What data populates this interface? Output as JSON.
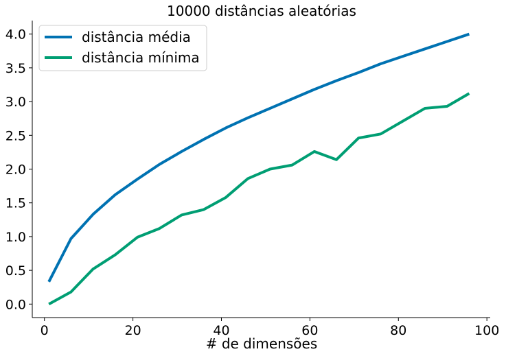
{
  "chart_data": {
    "type": "line",
    "title": "10000 distâncias aleatórias",
    "xlabel": "# de dimensões",
    "ylabel": "",
    "xlim": [
      -2.75,
      100.75
    ],
    "ylim": [
      -0.2,
      4.2
    ],
    "xticks": [
      0,
      20,
      40,
      60,
      80,
      100
    ],
    "yticks": [
      0.0,
      0.5,
      1.0,
      1.5,
      2.0,
      2.5,
      3.0,
      3.5,
      4.0
    ],
    "grid": false,
    "legend_position": "top-left",
    "x": [
      1,
      6,
      11,
      16,
      21,
      26,
      31,
      36,
      41,
      46,
      51,
      56,
      61,
      66,
      71,
      76,
      81,
      86,
      91,
      96
    ],
    "series": [
      {
        "name": "distância média",
        "color": "#0072b2",
        "values": [
          0.33,
          0.97,
          1.33,
          1.62,
          1.85,
          2.07,
          2.26,
          2.44,
          2.61,
          2.76,
          2.9,
          3.04,
          3.18,
          3.31,
          3.43,
          3.56,
          3.67,
          3.78,
          3.89,
          4.0
        ]
      },
      {
        "name": "distância mínima",
        "color": "#009e73",
        "values": [
          0.0,
          0.18,
          0.52,
          0.73,
          0.99,
          1.12,
          1.32,
          1.4,
          1.58,
          1.86,
          2.0,
          2.06,
          2.26,
          2.14,
          2.46,
          2.52,
          2.71,
          2.9,
          2.93,
          3.12
        ]
      }
    ]
  }
}
